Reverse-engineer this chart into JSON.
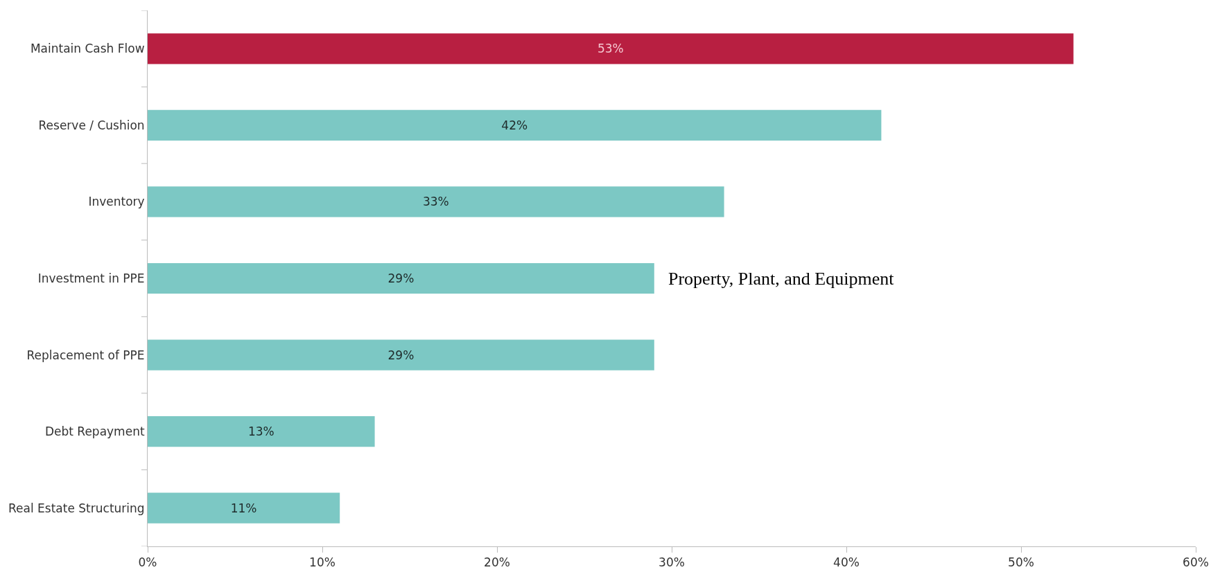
{
  "chart_data": {
    "type": "bar",
    "orientation": "horizontal",
    "categories": [
      "Maintain Cash Flow",
      "Reserve / Cushion",
      "Inventory",
      "Investment in PPE",
      "Replacement of PPE",
      "Debt Repayment",
      "Real Estate Structuring"
    ],
    "values": [
      53,
      42,
      33,
      29,
      29,
      13,
      11
    ],
    "colors": [
      "#b81f41",
      "#7cc8c4",
      "#7cc8c4",
      "#7cc8c4",
      "#7cc8c4",
      "#7cc8c4",
      "#7cc8c4"
    ],
    "value_labels": [
      "53%",
      "42%",
      "33%",
      "29%",
      "29%",
      "13%",
      "11%"
    ],
    "xlim": [
      0,
      60
    ],
    "xticks": [
      {
        "value": 0,
        "label": "0%"
      },
      {
        "value": 10,
        "label": "10%"
      },
      {
        "value": 20,
        "label": "20%"
      },
      {
        "value": 30,
        "label": "30%"
      },
      {
        "value": 40,
        "label": "40%"
      },
      {
        "value": 50,
        "label": "50%"
      },
      {
        "value": 60,
        "label": "60%"
      }
    ],
    "annotations": [
      {
        "text": "Property, Plant, and Equipment",
        "x": 29,
        "y": "Investment in PPE"
      }
    ]
  }
}
